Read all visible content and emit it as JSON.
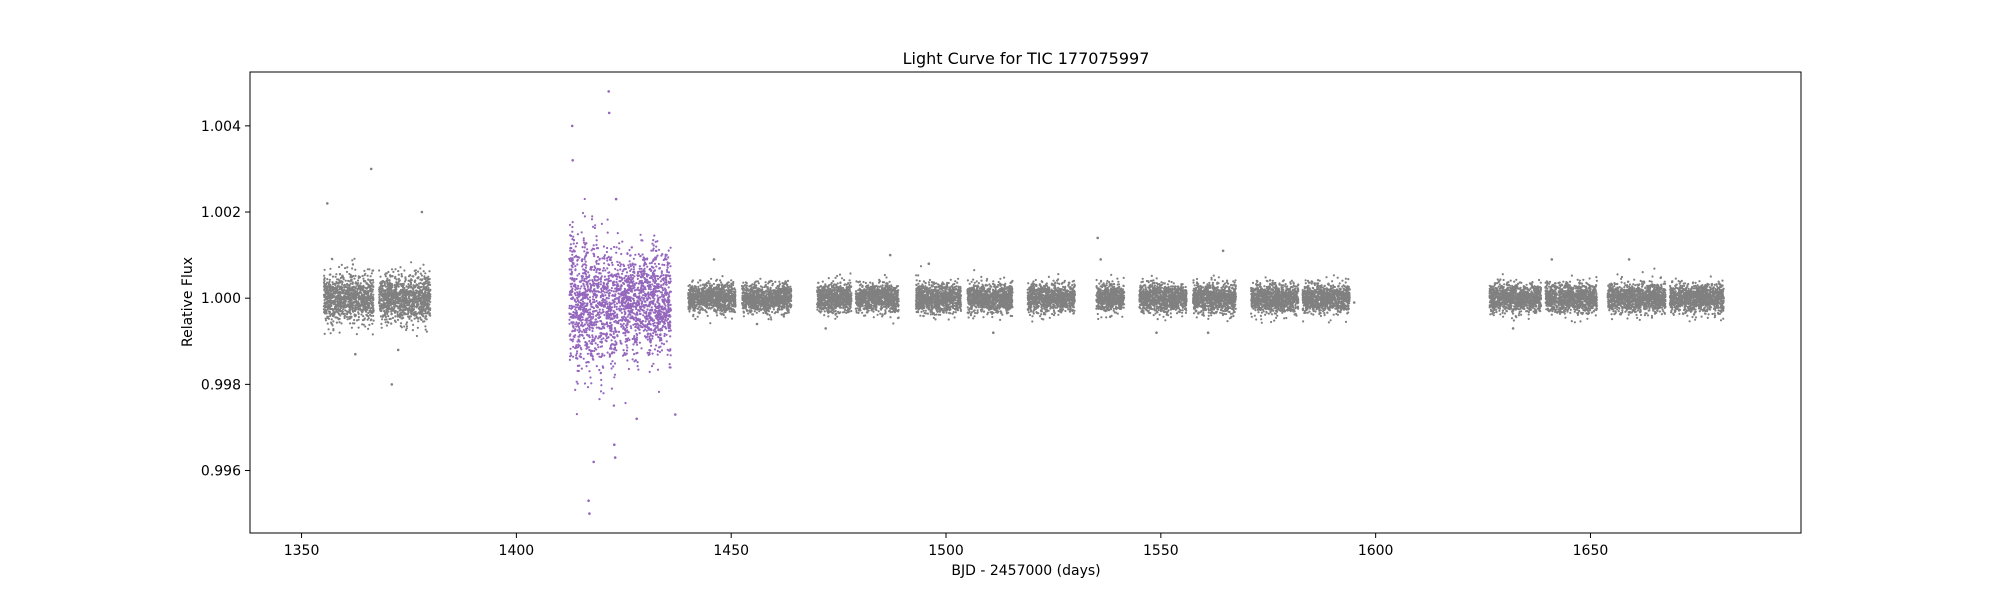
{
  "chart_data": {
    "type": "scatter",
    "title": "Light Curve for TIC 177075997",
    "xlabel": "BJD - 2457000 (days)",
    "ylabel": "Relative Flux",
    "xlim": [
      1338,
      1699
    ],
    "ylim": [
      0.99455,
      1.00525
    ],
    "xticks": [
      1350,
      1400,
      1450,
      1500,
      1550,
      1600,
      1650
    ],
    "yticks": [
      0.996,
      0.998,
      1.0,
      1.002,
      1.004
    ],
    "xtick_labels": [
      "1350",
      "1400",
      "1450",
      "1500",
      "1550",
      "1600",
      "1650"
    ],
    "ytick_labels": [
      "0.996",
      "0.998",
      "1.000",
      "1.002",
      "1.004"
    ],
    "grid": false,
    "legend": "none",
    "colors": {
      "gray": "#808080",
      "purple": "#9467bd"
    },
    "series": [
      {
        "color": "#808080",
        "segments": [
          {
            "x_start": 1355.2,
            "x_end": 1366.8,
            "center": 1.0,
            "spread": 0.0005,
            "outliers": [
              [
                1356.0,
                1.0022
              ],
              [
                1366.2,
                1.003
              ],
              [
                1362.5,
                0.9987
              ],
              [
                1371.0,
                0.998
              ]
            ]
          },
          {
            "x_start": 1368.0,
            "x_end": 1380.0,
            "center": 1.0,
            "spread": 0.0005,
            "outliers": [
              [
                1378.0,
                1.002
              ],
              [
                1372.5,
                0.9988
              ]
            ]
          },
          {
            "x_start": 1440.0,
            "x_end": 1451.0,
            "center": 1.0,
            "spread": 0.0003,
            "outliers": [
              [
                1446.0,
                1.0009
              ]
            ]
          },
          {
            "x_start": 1452.5,
            "x_end": 1464.0,
            "center": 1.0,
            "spread": 0.0003,
            "outliers": [
              [
                1456.0,
                0.9994
              ]
            ]
          },
          {
            "x_start": 1470.0,
            "x_end": 1478.0,
            "center": 1.0,
            "spread": 0.0003,
            "outliers": [
              [
                1472.0,
                0.9993
              ]
            ]
          },
          {
            "x_start": 1479.0,
            "x_end": 1489.0,
            "center": 1.0,
            "spread": 0.0003,
            "outliers": [
              [
                1487.0,
                1.001
              ]
            ]
          },
          {
            "x_start": 1493.0,
            "x_end": 1503.5,
            "center": 1.0,
            "spread": 0.0003,
            "outliers": [
              [
                1496.0,
                1.0008
              ]
            ]
          },
          {
            "x_start": 1505.0,
            "x_end": 1515.5,
            "center": 1.0,
            "spread": 0.0003,
            "outliers": [
              [
                1511.0,
                0.9992
              ]
            ]
          },
          {
            "x_start": 1519.0,
            "x_end": 1530.0,
            "center": 1.0,
            "spread": 0.0003,
            "outliers": []
          },
          {
            "x_start": 1535.0,
            "x_end": 1541.5,
            "center": 1.0,
            "spread": 0.0003,
            "outliers": [
              [
                1535.3,
                1.0014
              ],
              [
                1536.0,
                1.0009
              ]
            ]
          },
          {
            "x_start": 1545.0,
            "x_end": 1556.0,
            "center": 1.0,
            "spread": 0.0003,
            "outliers": [
              [
                1549.0,
                0.9992
              ]
            ]
          },
          {
            "x_start": 1557.5,
            "x_end": 1567.5,
            "center": 1.0,
            "spread": 0.0003,
            "outliers": [
              [
                1564.5,
                1.0011
              ],
              [
                1561.0,
                0.9992
              ]
            ]
          },
          {
            "x_start": 1571.0,
            "x_end": 1582.0,
            "center": 1.0,
            "spread": 0.0003,
            "outliers": []
          },
          {
            "x_start": 1583.0,
            "x_end": 1594.0,
            "center": 1.0,
            "spread": 0.0003,
            "outliers": [
              [
                1595.0,
                0.9999
              ]
            ]
          },
          {
            "x_start": 1626.5,
            "x_end": 1638.5,
            "center": 1.0,
            "spread": 0.0003,
            "outliers": [
              [
                1632.0,
                0.9993
              ]
            ]
          },
          {
            "x_start": 1639.5,
            "x_end": 1651.5,
            "center": 1.0,
            "spread": 0.0003,
            "outliers": [
              [
                1641.0,
                1.0009
              ]
            ]
          },
          {
            "x_start": 1654.0,
            "x_end": 1667.5,
            "center": 1.0,
            "spread": 0.0003,
            "outliers": [
              [
                1659.0,
                1.0009
              ]
            ]
          },
          {
            "x_start": 1668.5,
            "x_end": 1681.0,
            "center": 1.0,
            "spread": 0.0003,
            "outliers": []
          }
        ]
      },
      {
        "color": "#9467bd",
        "segments": [
          {
            "x_start": 1412.3,
            "x_end": 1423.0,
            "center": 0.9998,
            "spread": 0.0013,
            "outliers": [
              [
                1413.0,
                1.004
              ],
              [
                1413.1,
                1.0032
              ],
              [
                1416.8,
                0.9953
              ],
              [
                1417.0,
                0.995
              ],
              [
                1418.0,
                0.9962
              ],
              [
                1421.5,
                1.0048
              ],
              [
                1421.6,
                1.0043
              ],
              [
                1422.8,
                0.9966
              ],
              [
                1423.0,
                0.9963
              ]
            ]
          },
          {
            "x_start": 1423.0,
            "x_end": 1436.0,
            "center": 0.9999,
            "spread": 0.001,
            "outliers": [
              [
                1423.2,
                1.0023
              ],
              [
                1437.0,
                0.9973
              ],
              [
                1428.0,
                0.9972
              ]
            ]
          }
        ]
      }
    ]
  }
}
